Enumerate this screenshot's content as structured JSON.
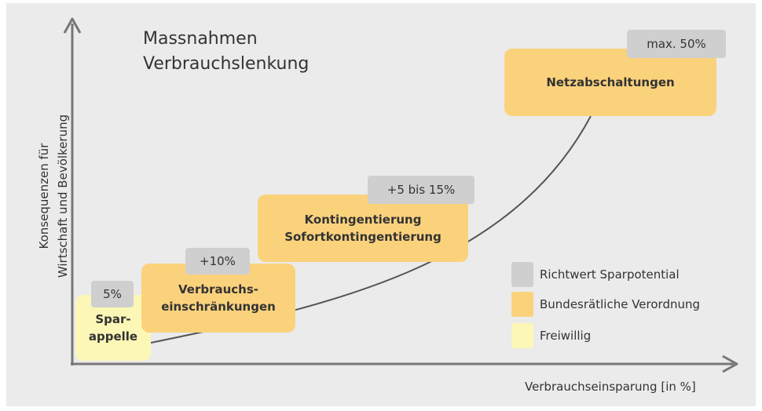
{
  "title": "Massnahmen\nVerbrauchslenkung",
  "y_axis_label": "Konsequenzen für\nWirtschaft und Bevölkerung",
  "x_axis_label": "Verbrauchseinsparung [in %]",
  "colors": {
    "background": "#ebebeb",
    "badge": "#cfcfcf",
    "government": "#fbd27c",
    "voluntary": "#fcf7b6",
    "axis": "#777777",
    "curve": "#555555"
  },
  "measures": [
    {
      "label": "Spar-\nappelle",
      "type": "voluntary",
      "savings": "5%"
    },
    {
      "label": "Verbrauchs-\neinschränkungen",
      "type": "government",
      "savings": "+10%"
    },
    {
      "label": "Kontingentierung\nSofortkontingentierung",
      "type": "government",
      "savings": "+5 bis 15%"
    },
    {
      "label": "Netzabschaltungen",
      "type": "government",
      "savings": "max. 50%"
    }
  ],
  "legend": [
    {
      "label": "Richtwert Sparpotential",
      "color": "#cfcfcf"
    },
    {
      "label": "Bundesrätliche Verordnung",
      "color": "#fbd27c"
    },
    {
      "label": "Freiwillig",
      "color": "#fcf7b6"
    }
  ]
}
